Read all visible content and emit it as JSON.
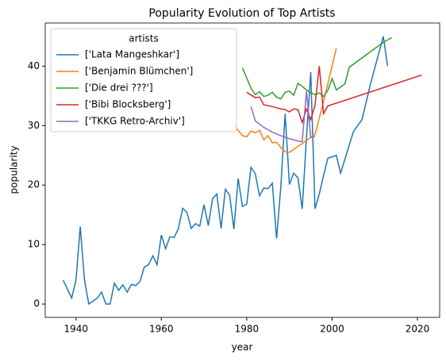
{
  "chart_data": {
    "type": "line",
    "title": "Popularity Evolution of Top Artists",
    "xlabel": "year",
    "ylabel": "popularity",
    "legend_title": "artists",
    "legend": "upper left",
    "xlim": [
      1932.8,
      2025.2
    ],
    "xticks": [
      1940,
      1960,
      1980,
      2000,
      2020
    ],
    "ylim": [
      -2.25,
      47.25
    ],
    "yticks": [
      0,
      10,
      20,
      30,
      40
    ],
    "series": [
      {
        "name": "['Lata Mangeshkar']",
        "color": "#1f77b4",
        "x": [
          1937,
          1939,
          1940,
          1941,
          1942,
          1943,
          1944,
          1945,
          1946,
          1947,
          1948,
          1949,
          1950,
          1951,
          1952,
          1953,
          1954,
          1955,
          1956,
          1957,
          1958,
          1959,
          1960,
          1961,
          1962,
          1963,
          1964,
          1965,
          1966,
          1967,
          1968,
          1969,
          1970,
          1971,
          1972,
          1973,
          1974,
          1975,
          1976,
          1977,
          1978,
          1979,
          1980,
          1981,
          1982,
          1983,
          1984,
          1985,
          1986,
          1987,
          1988,
          1989,
          1990,
          1991,
          1992,
          1993,
          1994,
          1995,
          1996,
          1997,
          1998,
          1999,
          2001,
          2002,
          2005,
          2007,
          2009,
          2012,
          2013
        ],
        "values": [
          4,
          1,
          4,
          13,
          4,
          0,
          0.5,
          1,
          2,
          0,
          0,
          3.5,
          2.3,
          3.2,
          2,
          3.3,
          3.1,
          3.8,
          6.2,
          6.6,
          8.1,
          6.6,
          11.6,
          9.3,
          11.3,
          11.2,
          12.7,
          16.1,
          15.4,
          12.7,
          13.5,
          13.1,
          16.7,
          13.2,
          17.7,
          18.5,
          12.7,
          19.3,
          18.3,
          12.6,
          21.1,
          16.4,
          16.8,
          23,
          21.9,
          18.2,
          19.5,
          19.4,
          20.3,
          11,
          19.8,
          32,
          20.1,
          22,
          21.2,
          16,
          28,
          39,
          16,
          18.5,
          21.6,
          24.5,
          25,
          22,
          29,
          31,
          37,
          45,
          40
        ]
      },
      {
        "name": "['Benjamin Blümchen']",
        "color": "#ff7f0e",
        "x": [
          1977,
          1978,
          1979,
          1980,
          1981,
          1982,
          1983,
          1984,
          1985,
          1986,
          1987,
          1988,
          1989,
          1990,
          1996,
          1998,
          2001
        ],
        "values": [
          30,
          29.2,
          28.3,
          28.1,
          29.1,
          28.8,
          29.2,
          27.6,
          28.3,
          27.1,
          27.2,
          26.3,
          25.6,
          25.5,
          28.5,
          34,
          43
        ]
      },
      {
        "name": "['Die drei ???']",
        "color": "#2ca02c",
        "x": [
          1979,
          1981,
          1982,
          1983,
          1984,
          1985,
          1986,
          1987,
          1988,
          1989,
          1990,
          1991,
          1992,
          1993,
          1994,
          1995,
          1996,
          1997,
          1998,
          1999,
          2000,
          2001,
          2003,
          2004,
          2012,
          2014
        ],
        "values": [
          39.7,
          36.3,
          35.2,
          35.7,
          34.9,
          35.1,
          35.6,
          34.8,
          34.5,
          35.6,
          35.8,
          35.1,
          37.1,
          36.6,
          36,
          35.5,
          35.2,
          35.5,
          34.9,
          35.9,
          37.9,
          36,
          37,
          39.8,
          44,
          44.8
        ]
      },
      {
        "name": "['Bibi Blocksberg']",
        "color": "#d62728",
        "x": [
          1980,
          1982,
          1983,
          1984,
          1986,
          1988,
          1989,
          1990,
          1991,
          1992,
          1993,
          1994,
          1995,
          1996,
          1997,
          1998,
          1999,
          2021
        ],
        "values": [
          35.6,
          34.7,
          34.8,
          33.5,
          33.2,
          32.8,
          32.7,
          32.3,
          32.8,
          32.7,
          30.5,
          32.8,
          31,
          33.4,
          40,
          32,
          33.3,
          38.5
        ]
      },
      {
        "name": "['TKKG Retro-Archiv']",
        "color": "#9467bd",
        "x": [
          1981,
          1982,
          1984,
          1986,
          1988,
          1990,
          1992,
          1993,
          1994,
          1995,
          1996
        ],
        "values": [
          33.2,
          30.8,
          29.7,
          28.9,
          28.3,
          27.8,
          27.4,
          27.3,
          35.8,
          28,
          28.2
        ]
      }
    ]
  }
}
